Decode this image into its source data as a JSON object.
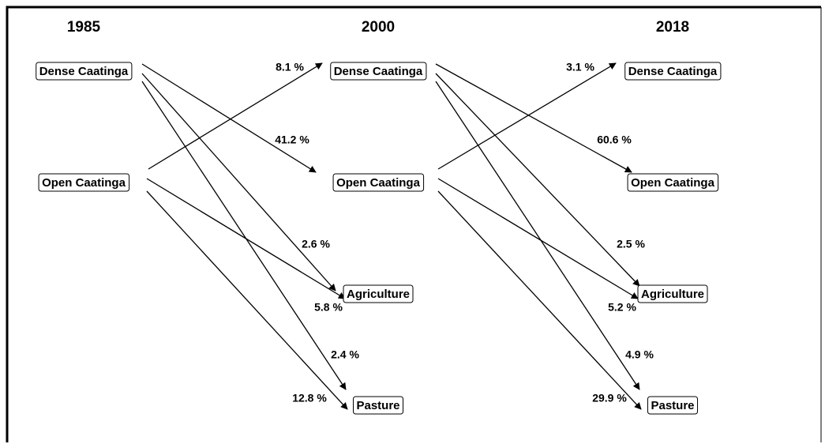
{
  "years": [
    "1985",
    "2000",
    "2018"
  ],
  "columns": [
    [
      "Dense Caatinga",
      "Open Caatinga"
    ],
    [
      "Dense Caatinga",
      "Open Caatinga",
      "Agriculture",
      "Pasture"
    ],
    [
      "Dense Caatinga",
      "Open Caatinga",
      "Agriculture",
      "Pasture"
    ]
  ],
  "transitions": [
    [
      "41.2 %",
      "2.6 %",
      "2.4 %",
      "8.1 %",
      "5.8 %",
      "12.8 %"
    ],
    [
      "60.6 %",
      "2.5 %",
      "4.9 %",
      "3.1 %",
      "5.2 %",
      "29.9 %"
    ]
  ]
}
